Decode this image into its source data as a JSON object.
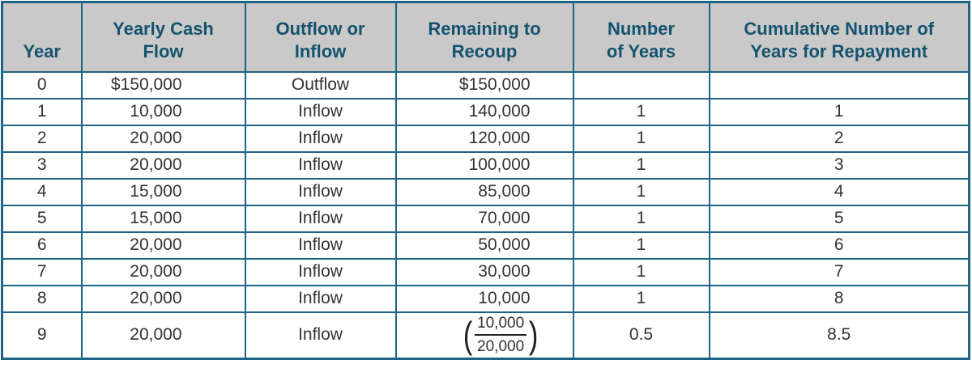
{
  "colors": {
    "border_teal": "#1E6486",
    "header_background": "#C9C9C9",
    "header_text": "#14536E",
    "body_text": "#333333"
  },
  "table": {
    "columns": [
      {
        "label": "Year"
      },
      {
        "label": "Yearly Cash\nFlow"
      },
      {
        "label": "Outflow or\nInflow"
      },
      {
        "label": "Remaining to\nRecoup"
      },
      {
        "label": "Number\nof Years"
      },
      {
        "label": "Cumulative Number of\nYears for Repayment"
      }
    ],
    "rows": [
      {
        "year": "0",
        "cash_flow": "$150,000",
        "flow_type": "Outflow",
        "remaining": "$150,000",
        "years": "",
        "cumulative": ""
      },
      {
        "year": "1",
        "cash_flow": "10,000",
        "flow_type": "Inflow",
        "remaining": "140,000",
        "years": "1",
        "cumulative": "1"
      },
      {
        "year": "2",
        "cash_flow": "20,000",
        "flow_type": "Inflow",
        "remaining": "120,000",
        "years": "1",
        "cumulative": "2"
      },
      {
        "year": "3",
        "cash_flow": "20,000",
        "flow_type": "Inflow",
        "remaining": "100,000",
        "years": "1",
        "cumulative": "3"
      },
      {
        "year": "4",
        "cash_flow": "15,000",
        "flow_type": "Inflow",
        "remaining": "85,000",
        "years": "1",
        "cumulative": "4"
      },
      {
        "year": "5",
        "cash_flow": "15,000",
        "flow_type": "Inflow",
        "remaining": "70,000",
        "years": "1",
        "cumulative": "5"
      },
      {
        "year": "6",
        "cash_flow": "20,000",
        "flow_type": "Inflow",
        "remaining": "50,000",
        "years": "1",
        "cumulative": "6"
      },
      {
        "year": "7",
        "cash_flow": "20,000",
        "flow_type": "Inflow",
        "remaining": "30,000",
        "years": "1",
        "cumulative": "7"
      },
      {
        "year": "8",
        "cash_flow": "20,000",
        "flow_type": "Inflow",
        "remaining": "10,000",
        "years": "1",
        "cumulative": "8"
      },
      {
        "year": "9",
        "cash_flow": "20,000",
        "flow_type": "Inflow",
        "remaining": {
          "type": "fraction",
          "numerator": "10,000",
          "denominator": "20,000"
        },
        "years": "0.5",
        "cumulative": "8.5",
        "tall": true
      }
    ]
  }
}
